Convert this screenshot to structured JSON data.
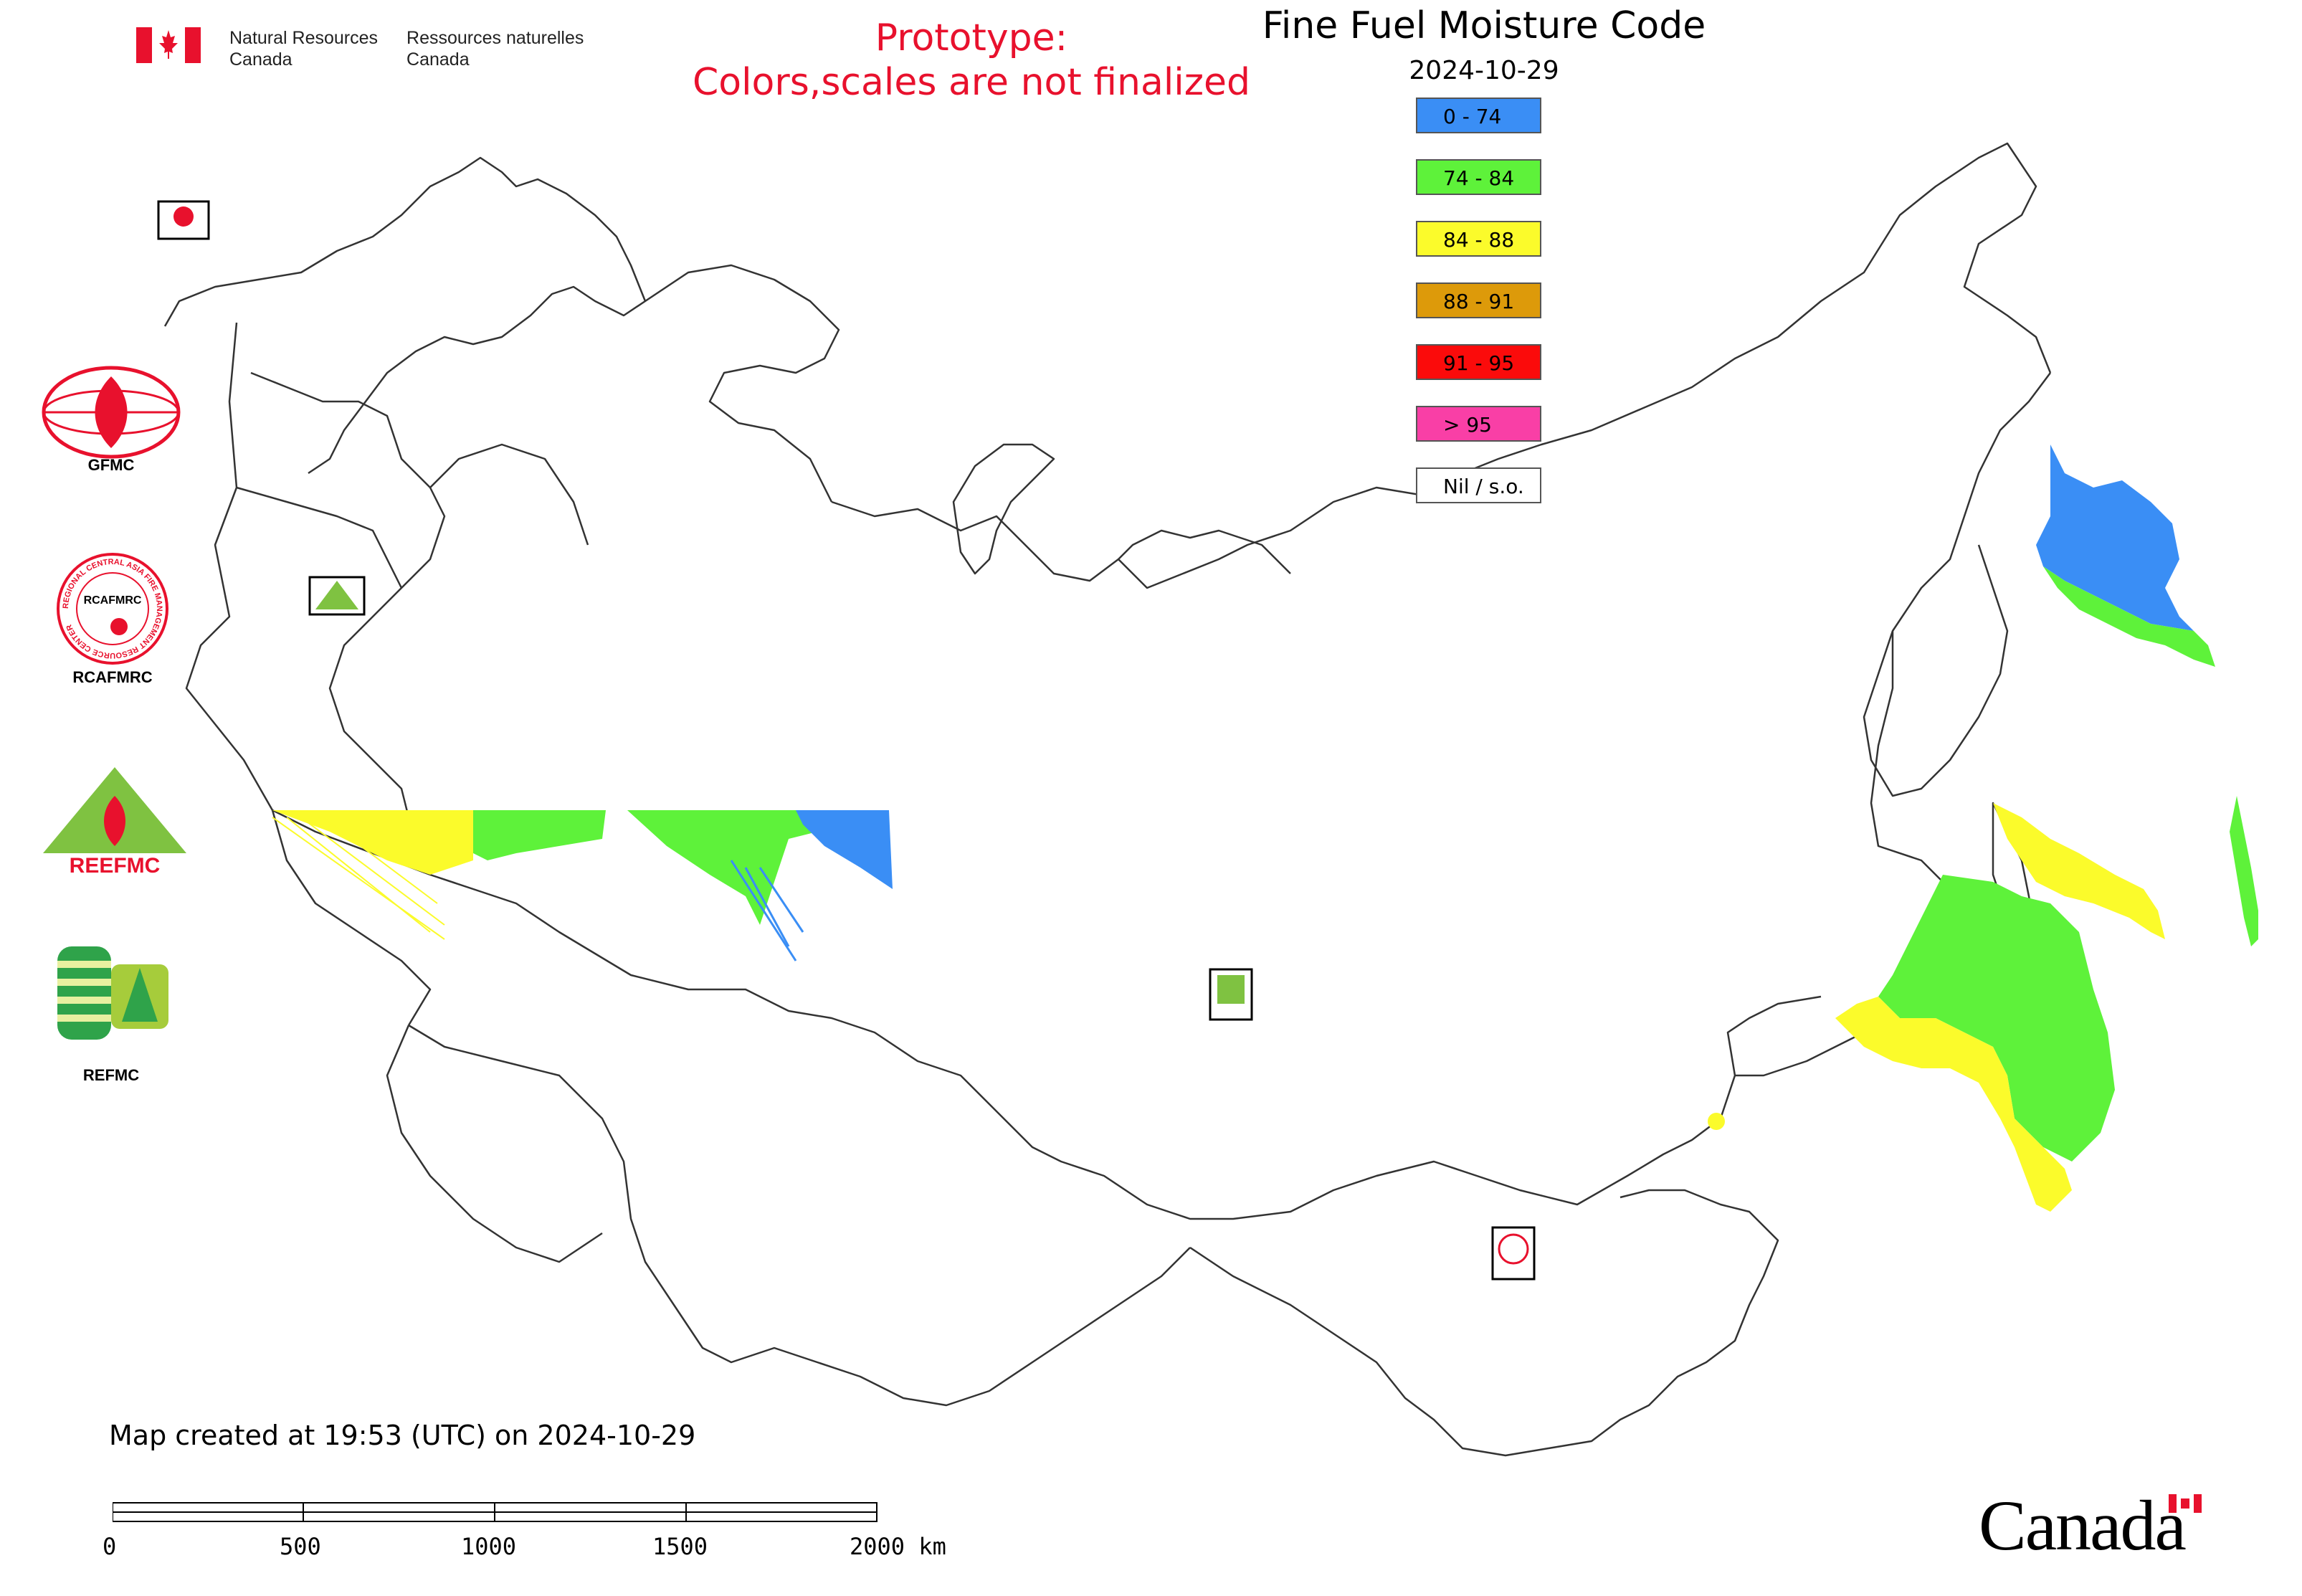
{
  "header": {
    "agency_en_line1": "Natural Resources",
    "agency_en_line2": "Canada",
    "agency_fr_line1": "Ressources naturelles",
    "agency_fr_line2": "Canada"
  },
  "notice": {
    "line1": "Prototype:",
    "line2": "Colors,scales are not finalized",
    "color": "#e8112d"
  },
  "map": {
    "title": "Fine Fuel Moisture Code",
    "date": "2024-10-29",
    "created_text": "Map created at 19:53 (UTC) on 2024-10-29"
  },
  "legend": {
    "items": [
      {
        "label": "0 - 74",
        "color": "#3a8ef5"
      },
      {
        "label": "74 - 84",
        "color": "#5ef23a"
      },
      {
        "label": "84 - 88",
        "color": "#fbfb2b"
      },
      {
        "label": "88 - 91",
        "color": "#dd9a0a"
      },
      {
        "label": "91 - 95",
        "color": "#fb0b0b"
      },
      {
        "label": "> 95",
        "color": "#f93fa6"
      },
      {
        "label": "Nil / s.o.",
        "color": "#ffffff"
      }
    ]
  },
  "logos": {
    "gfmc": "GFMC",
    "rcafmrc": "RCAFMRC",
    "reefmc": "REEFMC",
    "refmc": "REFMC",
    "rcafmrc_ring_text": "REGIONAL CENTRAL ASIA FIRE MANAGEMENT RESOURCE CENTER"
  },
  "scalebar": {
    "labels": [
      "0",
      "500",
      "1000",
      "1500",
      "2000 km"
    ]
  },
  "footer": {
    "wordmark": "Canada"
  },
  "icons": [
    "canada-flag-icon",
    "maple-leaf-icon",
    "flame-icon"
  ]
}
